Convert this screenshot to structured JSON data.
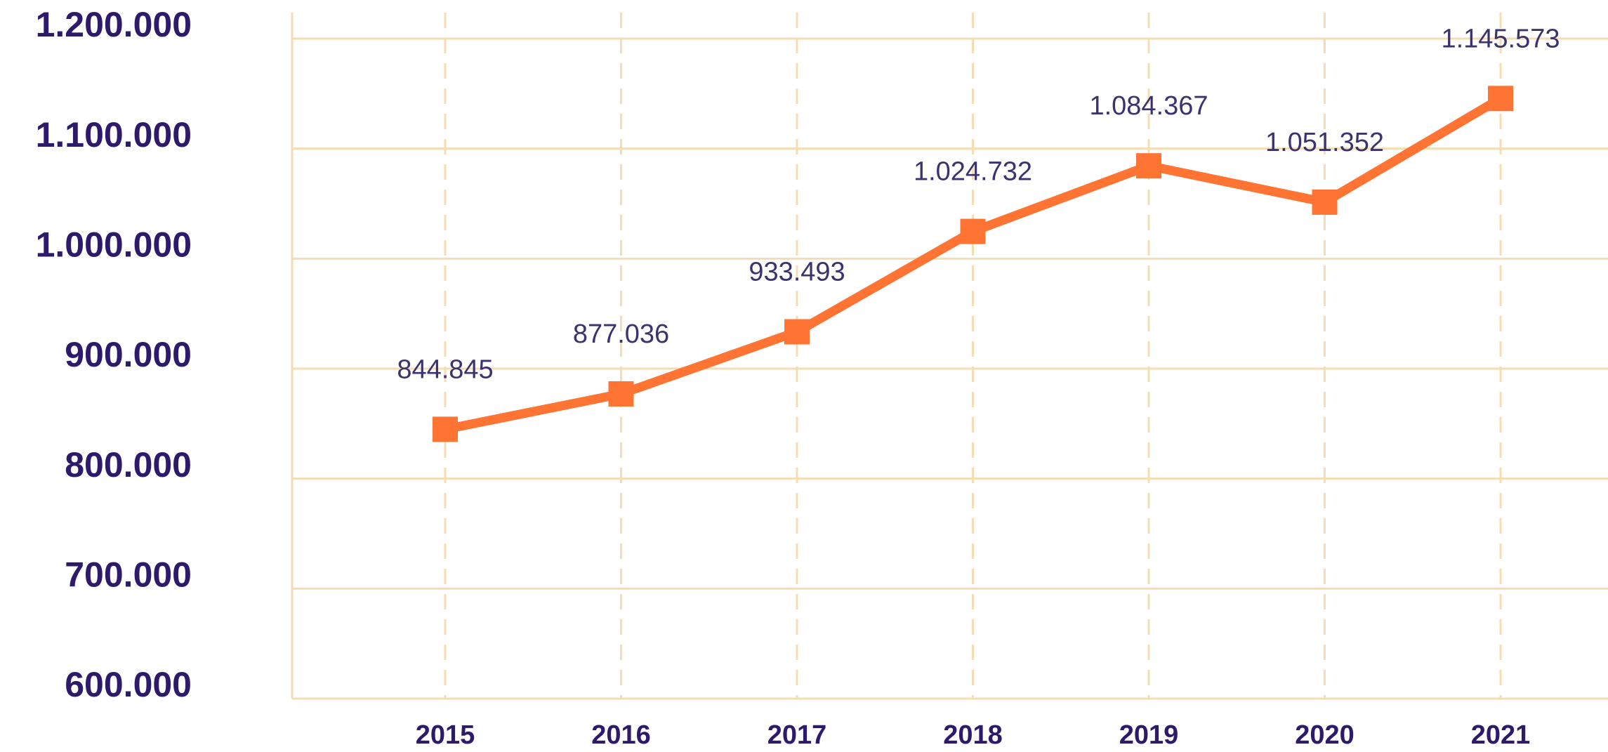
{
  "chart_data": {
    "type": "line",
    "categories": [
      "2015",
      "2016",
      "2017",
      "2018",
      "2019",
      "2020",
      "2021"
    ],
    "series": [
      {
        "color": "#ff7433",
        "values": [
          844845,
          877036,
          933493,
          1024732,
          1084367,
          1051352,
          1145573
        ],
        "value_labels": [
          "844.845",
          "877.036",
          "933.493",
          "1.024.732",
          "1.084.367",
          "1.051.352",
          "1.145.573"
        ]
      }
    ],
    "ylim": [
      600000,
      1200000
    ],
    "yticks": [
      {
        "value": 600000,
        "label": "600.000"
      },
      {
        "value": 700000,
        "label": "700.000"
      },
      {
        "value": 800000,
        "label": "800.000"
      },
      {
        "value": 900000,
        "label": "900.000"
      },
      {
        "value": 1000000,
        "label": "1.000.000"
      },
      {
        "value": 1100000,
        "label": "1.100.000"
      },
      {
        "value": 1200000,
        "label": "1.200.000"
      }
    ],
    "grid": true,
    "grid_color": "#f6dcb3"
  }
}
